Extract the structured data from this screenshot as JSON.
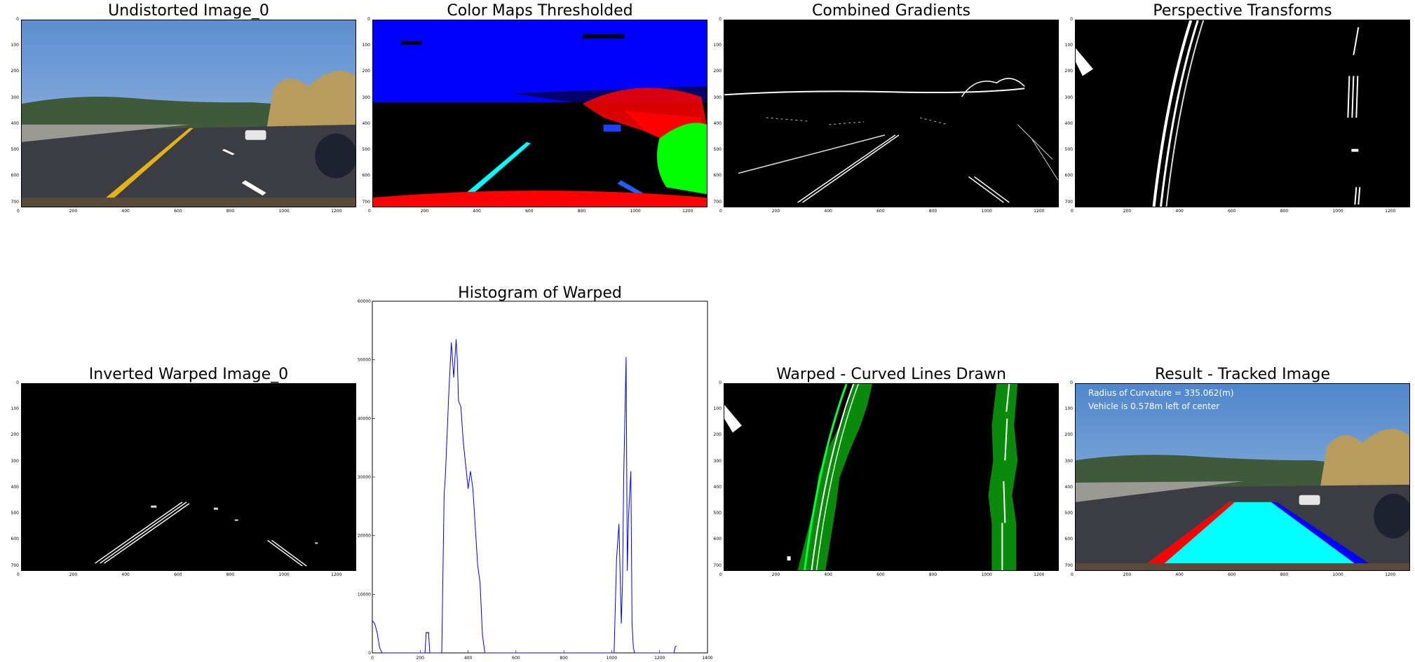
{
  "panels": {
    "p1": {
      "title": "Undistorted Image_0"
    },
    "p2": {
      "title": "Color Maps Thresholded"
    },
    "p3": {
      "title": "Combined Gradients"
    },
    "p4": {
      "title": "Perspective Transforms"
    },
    "p5": {
      "title": "Inverted Warped Image_0"
    },
    "p6": {
      "title": "Warped - Curved Lines Drawn"
    },
    "p7": {
      "title": "Result - Tracked Image",
      "overlay_line1": "Radius of Curvature = 335.062(m)",
      "overlay_line2": "Vehicle is 0.578m left of center"
    }
  },
  "image_axes": {
    "x_ticks": [
      "0",
      "200",
      "400",
      "600",
      "800",
      "1000",
      "1200"
    ],
    "y_ticks": [
      "0",
      "100",
      "200",
      "300",
      "400",
      "500",
      "600",
      "700"
    ],
    "x_range": [
      0,
      1280
    ],
    "y_range": [
      0,
      720
    ]
  },
  "chart_data": {
    "type": "line",
    "title": "Histogram of Warped",
    "xlabel": "",
    "ylabel": "",
    "xlim": [
      0,
      1400
    ],
    "ylim": [
      0,
      60000
    ],
    "x_ticks": [
      0,
      200,
      400,
      600,
      800,
      1000,
      1200,
      1400
    ],
    "y_ticks": [
      0,
      10000,
      20000,
      30000,
      40000,
      50000,
      60000
    ],
    "grid": false,
    "color": "#0000ff",
    "x": [
      0,
      10,
      20,
      30,
      40,
      220,
      225,
      230,
      235,
      240,
      290,
      300,
      305,
      320,
      330,
      340,
      350,
      355,
      360,
      370,
      380,
      390,
      400,
      410,
      420,
      440,
      450,
      460,
      470,
      480,
      490,
      500,
      1000,
      1010,
      1020,
      1030,
      1040,
      1045,
      1050,
      1060,
      1065,
      1070,
      1080,
      1085,
      1090,
      1095,
      1100,
      1110,
      1120,
      1260,
      1265,
      1270
    ],
    "y": [
      5500,
      5000,
      3500,
      1000,
      0,
      0,
      3500,
      3400,
      3500,
      0,
      0,
      27000,
      30000,
      45000,
      53000,
      47000,
      53500,
      50000,
      43000,
      42000,
      36000,
      32000,
      28000,
      31000,
      28000,
      15000,
      12000,
      3000,
      0,
      0,
      0,
      0,
      0,
      0,
      16000,
      22000,
      5000,
      12000,
      30000,
      50500,
      14000,
      23000,
      31000,
      5000,
      1000,
      0,
      0,
      0,
      0,
      0,
      1000,
      1200
    ]
  }
}
